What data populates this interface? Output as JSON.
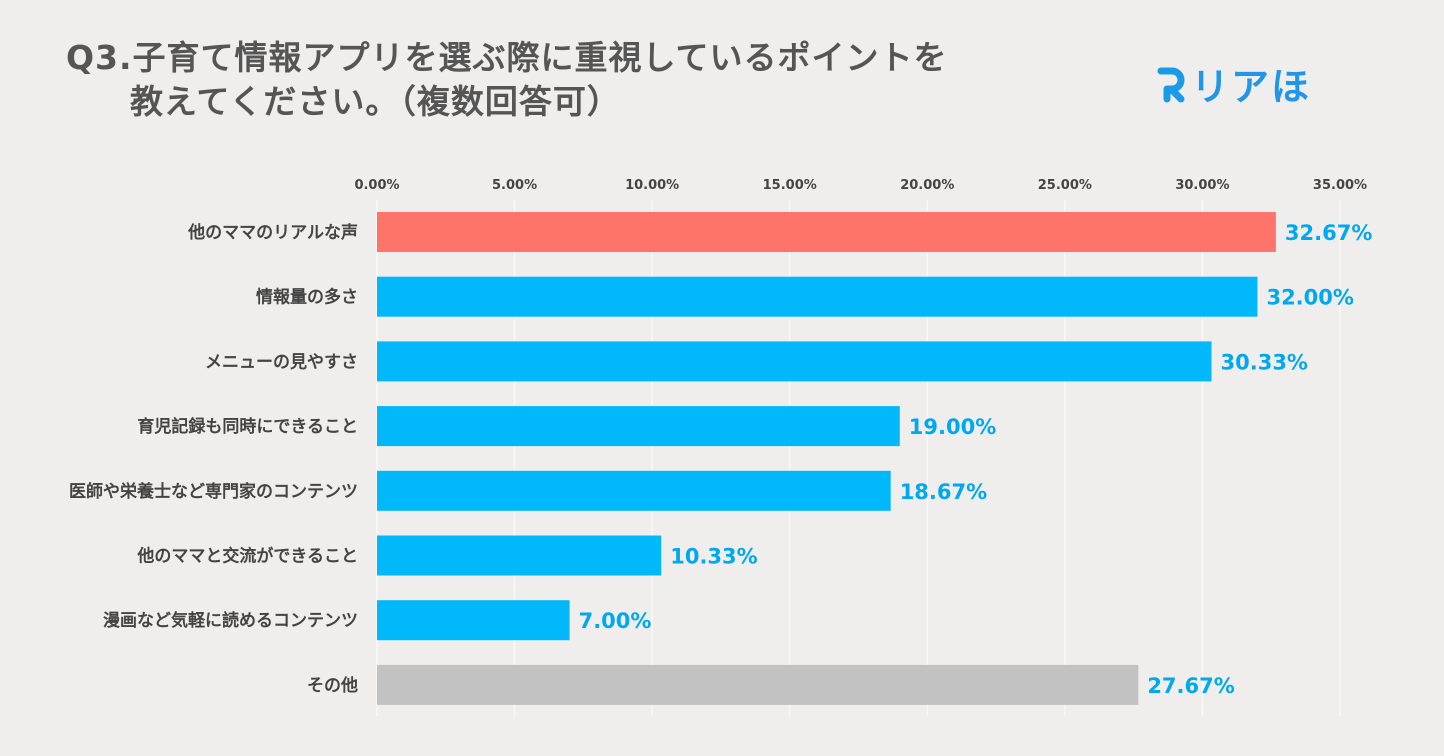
{
  "header": {
    "title_line1": "Q3.子育て情報アプリを選ぶ際に重視しているポイントを",
    "title_line2": "教えてください。（複数回答可）"
  },
  "logo": {
    "text": "リアほ",
    "icon": "r-logo-icon",
    "color": "#1a9be8"
  },
  "colors": {
    "highlight": "#ff7468",
    "primary": "#00b8fa",
    "other": "#c2c2c2",
    "label": "#00a8ef",
    "axis_text": "#444444",
    "grid": "#f8f8f8"
  },
  "chart_data": {
    "type": "bar",
    "orientation": "horizontal",
    "title": "Q3.子育て情報アプリを選ぶ際に重視しているポイントを教えてください。（複数回答可）",
    "xlabel": "",
    "ylabel": "",
    "xlim": [
      0,
      35
    ],
    "grid": true,
    "tick_values": [
      0,
      5,
      10,
      15,
      20,
      25,
      30,
      35
    ],
    "tick_labels": [
      "0.00%",
      "5.00%",
      "10.00%",
      "15.00%",
      "20.00%",
      "25.00%",
      "30.00%",
      "35.00%"
    ],
    "categories": [
      "他のママのリアルな声",
      "情報量の多さ",
      "メニューの見やすさ",
      "育児記録も同時にできること",
      "医師や栄養士など専門家のコンテンツ",
      "他のママと交流ができること",
      "漫画など気軽に読めるコンテンツ",
      "その他"
    ],
    "values": [
      32.67,
      32.0,
      30.33,
      19.0,
      18.67,
      10.33,
      7.0,
      27.67
    ],
    "value_labels": [
      "32.67%",
      "32.00%",
      "30.33%",
      "19.00%",
      "18.67%",
      "10.33%",
      "7.00%",
      "27.67%"
    ],
    "bar_color_roles": [
      "highlight",
      "primary",
      "primary",
      "primary",
      "primary",
      "primary",
      "primary",
      "other"
    ]
  }
}
